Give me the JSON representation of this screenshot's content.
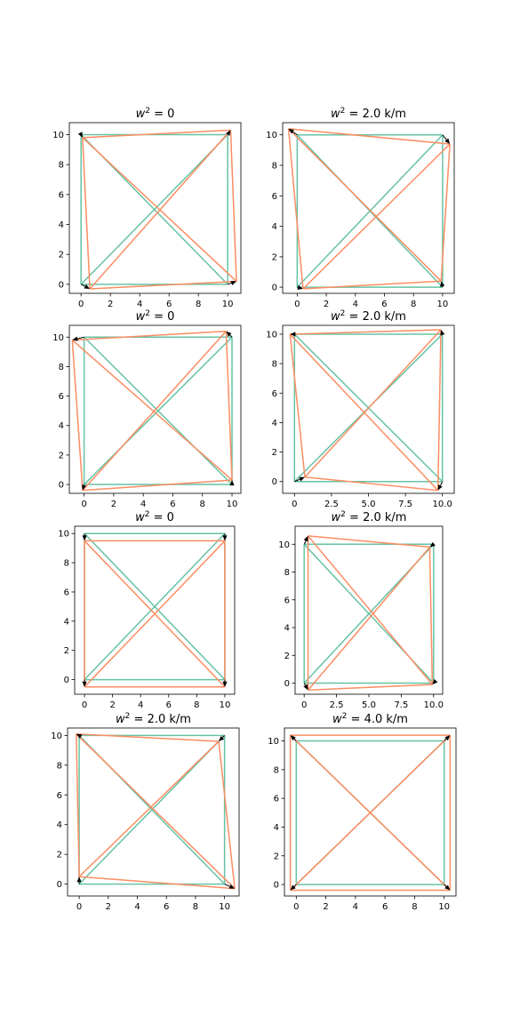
{
  "figure": {
    "background": "#ffffff"
  },
  "colors": {
    "original": "#66c2a5",
    "displaced": "#fc8d62",
    "arrow": "#000000"
  },
  "chart_data": [
    {
      "type": "line",
      "title": "w² = 0",
      "xlim": [
        -0.8,
        10.9
      ],
      "ylim": [
        -0.6,
        10.8
      ],
      "xticks": [
        0,
        2,
        4,
        6,
        8,
        10
      ],
      "xtick_labels": [
        "0",
        "2",
        "4",
        "6",
        "8",
        "10"
      ],
      "yticks": [
        0,
        2,
        4,
        6,
        8,
        10
      ],
      "ytick_labels": [
        "0",
        "2",
        "4",
        "6",
        "8",
        "10"
      ],
      "original_nodes": [
        [
          0,
          0
        ],
        [
          10,
          0
        ],
        [
          10,
          10
        ],
        [
          0,
          10
        ]
      ],
      "displaced_nodes": [
        [
          0.6,
          -0.3
        ],
        [
          10.6,
          0.2
        ],
        [
          10.2,
          10.3
        ],
        [
          0.1,
          9.8
        ]
      ]
    },
    {
      "type": "line",
      "title": "w² = 2.0 k/m",
      "xlim": [
        -1.0,
        10.8
      ],
      "ylim": [
        -0.4,
        10.8
      ],
      "xticks": [
        0,
        2,
        4,
        6,
        8,
        10
      ],
      "xtick_labels": [
        "0",
        "2",
        "4",
        "6",
        "8",
        "10"
      ],
      "yticks": [
        0,
        2,
        4,
        6,
        8,
        10
      ],
      "ytick_labels": [
        "0",
        "2",
        "4",
        "6",
        "8",
        "10"
      ],
      "original_nodes": [
        [
          0,
          0
        ],
        [
          10,
          0
        ],
        [
          10,
          10
        ],
        [
          0,
          10
        ]
      ],
      "displaced_nodes": [
        [
          0.4,
          -0.1
        ],
        [
          9.9,
          0.4
        ],
        [
          10.5,
          9.4
        ],
        [
          -0.6,
          10.4
        ]
      ]
    },
    {
      "type": "line",
      "title": "w² = 0",
      "xlim": [
        -1.0,
        10.6
      ],
      "ylim": [
        -0.6,
        10.8
      ],
      "xticks": [
        0,
        2,
        4,
        6,
        8,
        10
      ],
      "xtick_labels": [
        "0",
        "2",
        "4",
        "6",
        "8",
        "10"
      ],
      "yticks": [
        0,
        2,
        4,
        6,
        8,
        10
      ],
      "ytick_labels": [
        "0",
        "2",
        "4",
        "6",
        "8",
        "10"
      ],
      "original_nodes": [
        [
          0,
          0
        ],
        [
          10,
          0
        ],
        [
          10,
          10
        ],
        [
          0,
          10
        ]
      ],
      "displaced_nodes": [
        [
          -0.1,
          -0.4
        ],
        [
          10.0,
          0.3
        ],
        [
          9.6,
          10.4
        ],
        [
          -0.8,
          9.8
        ]
      ]
    },
    {
      "type": "line",
      "title": "w² = 2.0 k/m",
      "xlim": [
        -0.8,
        10.8
      ],
      "ylim": [
        -0.8,
        10.6
      ],
      "xticks": [
        0,
        2.5,
        5,
        7.5,
        10
      ],
      "xtick_labels": [
        "0",
        "2.5",
        "5.0",
        "7.5",
        "10.0"
      ],
      "yticks": [
        0,
        2,
        4,
        6,
        8,
        10
      ],
      "ytick_labels": [
        "0",
        "2",
        "4",
        "6",
        "8",
        "10"
      ],
      "original_nodes": [
        [
          0,
          0
        ],
        [
          10,
          0
        ],
        [
          10,
          10
        ],
        [
          0,
          10
        ]
      ],
      "displaced_nodes": [
        [
          0.7,
          0.3
        ],
        [
          9.7,
          -0.6
        ],
        [
          9.9,
          10.3
        ],
        [
          -0.3,
          10.0
        ]
      ]
    },
    {
      "type": "line",
      "title": "w² = 0",
      "xlim": [
        -0.7,
        10.7
      ],
      "ylim": [
        -1.0,
        10.5
      ],
      "xticks": [
        0,
        2,
        4,
        6,
        8,
        10
      ],
      "xtick_labels": [
        "0",
        "2",
        "4",
        "6",
        "8",
        "10"
      ],
      "yticks": [
        0,
        2,
        4,
        6,
        8,
        10
      ],
      "ytick_labels": [
        "0",
        "2",
        "4",
        "6",
        "8",
        "10"
      ],
      "original_nodes": [
        [
          0,
          0
        ],
        [
          10,
          0
        ],
        [
          10,
          10
        ],
        [
          0,
          10
        ]
      ],
      "displaced_nodes": [
        [
          0.0,
          -0.5
        ],
        [
          10.0,
          -0.5
        ],
        [
          10.0,
          9.5
        ],
        [
          0.0,
          9.5
        ]
      ]
    },
    {
      "type": "line",
      "title": "w² = 2.0 k/m",
      "xlim": [
        -0.7,
        10.7
      ],
      "ylim": [
        -0.8,
        11.3
      ],
      "xticks": [
        0,
        2.5,
        5,
        7.5,
        10
      ],
      "xtick_labels": [
        "0",
        "2.5",
        "5.0",
        "7.5",
        "10.0"
      ],
      "yticks": [
        0,
        2,
        4,
        6,
        8,
        10
      ],
      "ytick_labels": [
        "0",
        "2",
        "4",
        "6",
        "8",
        "10"
      ],
      "original_nodes": [
        [
          0,
          0
        ],
        [
          10,
          0
        ],
        [
          10,
          10
        ],
        [
          0,
          10
        ]
      ],
      "displaced_nodes": [
        [
          0.3,
          -0.5
        ],
        [
          9.9,
          -0.1
        ],
        [
          9.7,
          9.8
        ],
        [
          0.3,
          10.6
        ]
      ]
    },
    {
      "type": "line",
      "title": "w² = 2.0 k/m",
      "xlim": [
        -0.8,
        11.0
      ],
      "ylim": [
        -0.8,
        10.5
      ],
      "xticks": [
        0,
        2,
        4,
        6,
        8,
        10
      ],
      "xtick_labels": [
        "0",
        "2",
        "4",
        "6",
        "8",
        "10"
      ],
      "yticks": [
        0,
        2,
        4,
        6,
        8,
        10
      ],
      "ytick_labels": [
        "0",
        "2",
        "4",
        "6",
        "8",
        "10"
      ],
      "original_nodes": [
        [
          0,
          0
        ],
        [
          10,
          0
        ],
        [
          10,
          10
        ],
        [
          0,
          10
        ]
      ],
      "displaced_nodes": [
        [
          0.0,
          0.5
        ],
        [
          10.7,
          -0.3
        ],
        [
          9.6,
          9.6
        ],
        [
          -0.2,
          10.1
        ]
      ]
    },
    {
      "type": "line",
      "title": "w² = 4.0 k/m",
      "xlim": [
        -0.8,
        10.8
      ],
      "ylim": [
        -0.8,
        10.9
      ],
      "xticks": [
        0,
        2,
        4,
        6,
        8,
        10
      ],
      "xtick_labels": [
        "0",
        "2",
        "4",
        "6",
        "8",
        "10"
      ],
      "yticks": [
        0,
        2,
        4,
        6,
        8,
        10
      ],
      "ytick_labels": [
        "0",
        "2",
        "4",
        "6",
        "8",
        "10"
      ],
      "original_nodes": [
        [
          0,
          0
        ],
        [
          10,
          0
        ],
        [
          10,
          10
        ],
        [
          0,
          10
        ]
      ],
      "displaced_nodes": [
        [
          -0.4,
          -0.4
        ],
        [
          10.4,
          -0.4
        ],
        [
          10.4,
          10.4
        ],
        [
          -0.4,
          10.4
        ]
      ]
    }
  ]
}
